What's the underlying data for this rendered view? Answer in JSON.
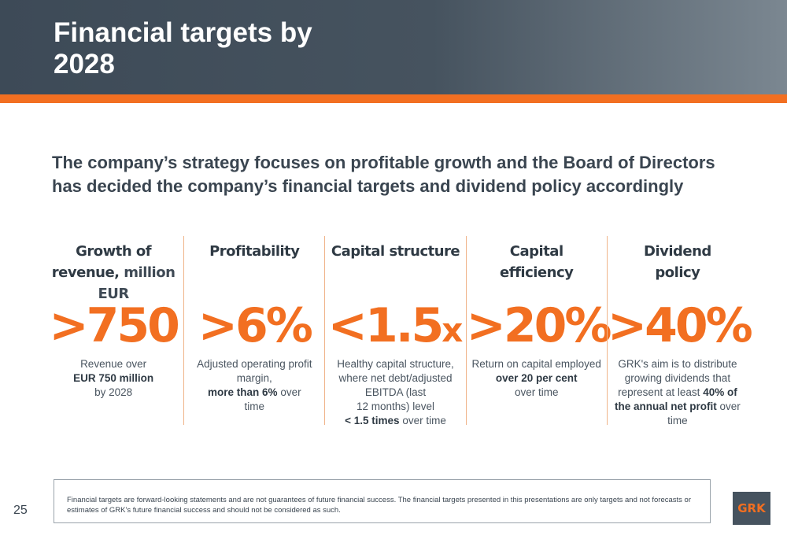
{
  "header": {
    "title_line1": "Financial targets by",
    "title_line2": "2028"
  },
  "intro": {
    "line1": "The company’s strategy focuses on profitable growth and the Board of Directors",
    "line2": "has decided the company’s financial targets and dividend policy accordingly"
  },
  "columns": [
    {
      "head_line1": "Growth of",
      "head_line2a": "revenue,",
      "head_line2b": "million",
      "head_line3": "EUR",
      "value": ">750",
      "desc_line1": "Revenue over",
      "desc_bold": "EUR 750 million",
      "desc_line3": "by 2028"
    },
    {
      "head_line1": "Profitability",
      "value": ">6%",
      "desc_line1": "Adjusted operating profit",
      "desc_line2": "margin,",
      "desc_bold": "more than 6%",
      "desc_after_bold": "over",
      "desc_line4": "time"
    },
    {
      "head_line1": "Capital structure",
      "value_main": "<1.5",
      "value_suffix": "x",
      "desc_line1": "Healthy capital structure,",
      "desc_line2": "where net debt/adjusted",
      "desc_line3": "EBITDA (last",
      "desc_line4": "12 months) level",
      "desc_bold": "< 1.5 times",
      "desc_after_bold": "over time"
    },
    {
      "head_line1": "Capital",
      "head_line2": "efficiency",
      "value": ">20%",
      "desc_line1": "Return on capital employed",
      "desc_bold": "over 20 per cent",
      "desc_line3": "over time"
    },
    {
      "head_line1": "Dividend",
      "head_line2": "policy",
      "value": ">40%",
      "desc_line1": "GRK's aim is to distribute",
      "desc_line2": "growing dividends that",
      "desc_line3a": "represent at least",
      "desc_bold1": "40% of",
      "desc_bold2": "the annual net profit",
      "desc_after_bold": "over",
      "desc_line5": "time"
    }
  ],
  "disclaimer": "Financial targets are forward-looking statements and are not guarantees of future financial success. The financial targets presented in this presentations are only targets and not forecasts or estimates of GRK’s future financial success and should not be considered as such.",
  "page_number": "25",
  "logo_text": "GRK",
  "colors": {
    "accent": "#f26f21",
    "header_dark": "#3d4a57",
    "text_dark": "#3a4550"
  }
}
